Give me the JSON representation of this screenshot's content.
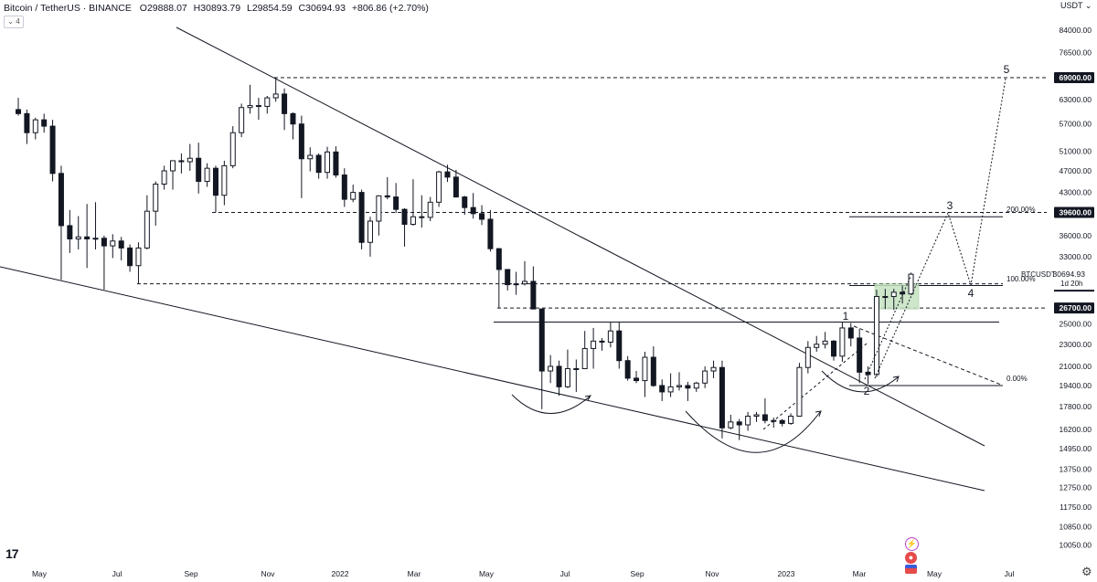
{
  "header": {
    "symbol": "Bitcoin / TetherUS · BINANCE",
    "open_label": "O",
    "open": "29888.07",
    "high_label": "H",
    "high": "30893.79",
    "low_label": "L",
    "low": "29854.59",
    "close_label": "C",
    "close": "30694.93",
    "change": "+806.86 (+2.70%)",
    "indicator_toggle": "4"
  },
  "currency_selector": "USDT",
  "logo_text": "17",
  "settings_icon": "gear-icon",
  "colors": {
    "candle": "#131722",
    "grid_line": "#131722",
    "tag_bg": "#131722",
    "tag_text": "#ffffff",
    "zone_fill": "#c6e2c0",
    "zone_stroke": "#8fc48a",
    "flash_icon": "#c040d0",
    "flag_icon": "#e64a4a"
  },
  "chart_data": {
    "type": "candlestick",
    "title": "Bitcoin / TetherUS · BINANCE",
    "y_scale": "log",
    "y_ticks": [
      84000,
      76500,
      69000,
      63000,
      57000,
      51000,
      47000,
      43000,
      39600,
      36000,
      33000,
      30694.93,
      26700,
      25000,
      23000,
      21000,
      19400,
      17800,
      16200,
      14950,
      13750,
      12750,
      11750,
      10850,
      10050
    ],
    "y_tick_labels": [
      "84000.00",
      "76500.00",
      "69000.00",
      "63000.00",
      "57000.00",
      "51000.00",
      "47000.00",
      "43000.00",
      "39600.00",
      "36000.00",
      "33000.00",
      "30694.93",
      "26700.00",
      "25000.00",
      "23000.00",
      "21000.00",
      "19400.00",
      "17800.00",
      "16200.00",
      "14950.00",
      "13750.00",
      "12750.00",
      "11750.00",
      "10850.00",
      "10050.00"
    ],
    "highlighted_price_tags": [
      "69000.00",
      "39600.00",
      "26700.00"
    ],
    "last_price_tag": {
      "symbol": "BTCUSDT",
      "price": "30694.93",
      "countdown": "1d 20h"
    },
    "x_tick_labels": [
      "May",
      "Jul",
      "Sep",
      "Nov",
      "2022",
      "Mar",
      "May",
      "Jul",
      "Sep",
      "Nov",
      "2023",
      "Mar",
      "May",
      "Jul"
    ],
    "horizontal_levels": [
      {
        "price": 69000,
        "style": "dashed"
      },
      {
        "price": 39600,
        "style": "dashed"
      },
      {
        "price": 29500,
        "style": "dashed"
      },
      {
        "price": 26700,
        "style": "dashed"
      },
      {
        "price": 25200,
        "style": "solid"
      }
    ],
    "fibonacci_labels": [
      "200.00%",
      "100.00%",
      "0.00%"
    ],
    "wave_labels": [
      "1",
      "2",
      "3",
      "4",
      "5"
    ],
    "trendlines": [
      {
        "name": "falling-wedge-upper",
        "from": [
          "2021-05-15",
          86000
        ],
        "to": [
          "2023-06-15",
          14500
        ]
      },
      {
        "name": "falling-wedge-lower",
        "from": [
          "2021-04-05",
          30000
        ],
        "to": [
          "2023-06-15",
          12500
        ]
      }
    ],
    "candles": [
      [
        "2021-04-12",
        60500,
        63500,
        59000,
        59500
      ],
      [
        "2021-04-19",
        59500,
        60500,
        52500,
        55000
      ],
      [
        "2021-04-26",
        55000,
        58500,
        53500,
        58000
      ],
      [
        "2021-05-03",
        58000,
        59500,
        55000,
        56500
      ],
      [
        "2021-05-10",
        56500,
        58000,
        45000,
        46500
      ],
      [
        "2021-05-17",
        46500,
        48000,
        30000,
        37500
      ],
      [
        "2021-05-24",
        37500,
        40000,
        33500,
        35500
      ],
      [
        "2021-05-31",
        35500,
        39000,
        34000,
        35800
      ],
      [
        "2021-06-07",
        35800,
        41000,
        31500,
        35500
      ],
      [
        "2021-06-14",
        35500,
        41300,
        34000,
        35600
      ],
      [
        "2021-06-21",
        35600,
        36000,
        28800,
        34500
      ],
      [
        "2021-06-28",
        34500,
        36200,
        32800,
        35200
      ],
      [
        "2021-07-05",
        35200,
        35800,
        32500,
        34200
      ],
      [
        "2021-07-12",
        34200,
        34700,
        31000,
        31800
      ],
      [
        "2021-07-19",
        31800,
        35000,
        29500,
        34200
      ],
      [
        "2021-07-26",
        34200,
        42500,
        34000,
        39800
      ],
      [
        "2021-08-02",
        39800,
        45000,
        37500,
        44500
      ],
      [
        "2021-08-09",
        44500,
        48000,
        43500,
        47000
      ],
      [
        "2021-08-16",
        47000,
        49000,
        43500,
        49000
      ],
      [
        "2021-08-23",
        49000,
        50500,
        46500,
        48800
      ],
      [
        "2021-08-30",
        48800,
        52500,
        47000,
        49500
      ],
      [
        "2021-09-06",
        49500,
        52800,
        42800,
        45000
      ],
      [
        "2021-09-13",
        45000,
        48500,
        44000,
        47500
      ],
      [
        "2021-09-20",
        47500,
        48000,
        39600,
        42500
      ],
      [
        "2021-09-27",
        42500,
        49000,
        40800,
        48000
      ],
      [
        "2021-10-04",
        48000,
        56500,
        47500,
        55000
      ],
      [
        "2021-10-11",
        55000,
        62000,
        54000,
        61000
      ],
      [
        "2021-10-18",
        61000,
        67000,
        59500,
        61500
      ],
      [
        "2021-10-25",
        61500,
        63500,
        58000,
        61300
      ],
      [
        "2021-11-01",
        61300,
        64000,
        59500,
        63500
      ],
      [
        "2021-11-08",
        63500,
        69000,
        62500,
        64500
      ],
      [
        "2021-11-15",
        64500,
        66000,
        55600,
        59500
      ],
      [
        "2021-11-22",
        59500,
        59800,
        53500,
        57000
      ],
      [
        "2021-11-29",
        57000,
        59000,
        42000,
        49400
      ],
      [
        "2021-12-06",
        49400,
        51800,
        46900,
        50100
      ],
      [
        "2021-12-13",
        50100,
        50500,
        45500,
        46700
      ],
      [
        "2021-12-20",
        46700,
        51900,
        45500,
        50800
      ],
      [
        "2021-12-27",
        50800,
        52000,
        45700,
        46200
      ],
      [
        "2022-01-03",
        46200,
        47500,
        40500,
        41800
      ],
      [
        "2022-01-10",
        41800,
        44400,
        41300,
        43000
      ],
      [
        "2022-01-17",
        43000,
        43500,
        34000,
        35000
      ],
      [
        "2022-01-24",
        35000,
        38900,
        33000,
        38200
      ],
      [
        "2022-01-31",
        38200,
        42500,
        36000,
        42400
      ],
      [
        "2022-02-07",
        42400,
        45800,
        41800,
        42200
      ],
      [
        "2022-02-14",
        42200,
        44700,
        39500,
        40100
      ],
      [
        "2022-02-21",
        40100,
        40300,
        34400,
        37700
      ],
      [
        "2022-02-28",
        37700,
        45400,
        37500,
        38900
      ],
      [
        "2022-03-07",
        38900,
        42500,
        37200,
        38800
      ],
      [
        "2022-03-14",
        38800,
        42200,
        38200,
        41300
      ],
      [
        "2022-03-21",
        41300,
        47000,
        40500,
        46800
      ],
      [
        "2022-03-28",
        46800,
        48200,
        44900,
        45800
      ],
      [
        "2022-04-04",
        45800,
        47200,
        42100,
        42200
      ],
      [
        "2022-04-11",
        42200,
        42400,
        39200,
        40400
      ],
      [
        "2022-04-18",
        40400,
        42900,
        38600,
        39400
      ],
      [
        "2022-04-25",
        39400,
        40800,
        37600,
        38500
      ],
      [
        "2022-05-02",
        38500,
        40000,
        33700,
        34100
      ],
      [
        "2022-05-09",
        34100,
        34200,
        26700,
        31300
      ],
      [
        "2022-05-16",
        31300,
        31200,
        28700,
        29400
      ],
      [
        "2022-05-23",
        29400,
        31000,
        28200,
        29500
      ],
      [
        "2022-05-30",
        29500,
        32400,
        29300,
        29800
      ],
      [
        "2022-06-06",
        29800,
        31700,
        26700,
        26600
      ],
      [
        "2022-06-13",
        26600,
        26600,
        17600,
        20600
      ],
      [
        "2022-06-20",
        20600,
        22000,
        19600,
        21000
      ],
      [
        "2022-06-27",
        21000,
        21500,
        18600,
        19300
      ],
      [
        "2022-07-04",
        19300,
        22500,
        19200,
        20800
      ],
      [
        "2022-07-11",
        20800,
        21600,
        18900,
        20800
      ],
      [
        "2022-07-18",
        20800,
        24300,
        20800,
        22600
      ],
      [
        "2022-07-25",
        22600,
        24600,
        20800,
        23300
      ],
      [
        "2022-08-01",
        23300,
        23600,
        22400,
        23200
      ],
      [
        "2022-08-08",
        23200,
        25200,
        22700,
        24300
      ],
      [
        "2022-08-15",
        24300,
        25200,
        20800,
        21500
      ],
      [
        "2022-08-22",
        21500,
        21900,
        19800,
        20000
      ],
      [
        "2022-08-29",
        20000,
        20600,
        19600,
        19800
      ],
      [
        "2022-09-05",
        19800,
        22300,
        18500,
        21800
      ],
      [
        "2022-09-12",
        21800,
        22800,
        19300,
        19400
      ],
      [
        "2022-09-19",
        19400,
        19900,
        18200,
        18900
      ],
      [
        "2022-09-26",
        18900,
        20400,
        18500,
        19300
      ],
      [
        "2022-10-03",
        19300,
        20500,
        19000,
        19400
      ],
      [
        "2022-10-10",
        19400,
        19700,
        18200,
        19200
      ],
      [
        "2022-10-17",
        19200,
        19700,
        18900,
        19600
      ],
      [
        "2022-10-24",
        19600,
        21000,
        19200,
        20600
      ],
      [
        "2022-10-31",
        20600,
        21500,
        20000,
        20900
      ],
      [
        "2022-11-07",
        20900,
        21500,
        15600,
        16300
      ],
      [
        "2022-11-14",
        16300,
        17200,
        16200,
        16700
      ],
      [
        "2022-11-21",
        16700,
        16900,
        15500,
        16500
      ],
      [
        "2022-11-28",
        16500,
        17400,
        16100,
        17100
      ],
      [
        "2022-12-05",
        17100,
        17400,
        16700,
        17200
      ],
      [
        "2022-12-12",
        17200,
        18400,
        16600,
        16800
      ],
      [
        "2022-12-19",
        16800,
        17000,
        16300,
        16800
      ],
      [
        "2022-12-26",
        16800,
        16900,
        16400,
        16600
      ],
      [
        "2023-01-02",
        16600,
        17300,
        16500,
        17100
      ],
      [
        "2023-01-09",
        17100,
        21300,
        17100,
        20900
      ],
      [
        "2023-01-16",
        20900,
        23300,
        20400,
        22700
      ],
      [
        "2023-01-23",
        22700,
        23800,
        22300,
        23000
      ],
      [
        "2023-01-30",
        23000,
        24200,
        22600,
        23300
      ],
      [
        "2023-02-06",
        23300,
        23400,
        21500,
        21900
      ],
      [
        "2023-02-13",
        21900,
        25200,
        21400,
        24600
      ],
      [
        "2023-02-20",
        24600,
        25100,
        22800,
        23600
      ],
      [
        "2023-02-27",
        23600,
        24500,
        19600,
        20500
      ],
      [
        "2023-03-06",
        20500,
        21000,
        19500,
        20300
      ],
      [
        "2023-03-13",
        20300,
        28800,
        20100,
        28000
      ],
      [
        "2023-03-20",
        28000,
        28900,
        26600,
        28000
      ],
      [
        "2023-03-27",
        28000,
        28900,
        26500,
        28500
      ],
      [
        "2023-04-03",
        28500,
        29300,
        27200,
        28300
      ],
      [
        "2023-04-10",
        28300,
        30900,
        28200,
        30700
      ]
    ]
  }
}
